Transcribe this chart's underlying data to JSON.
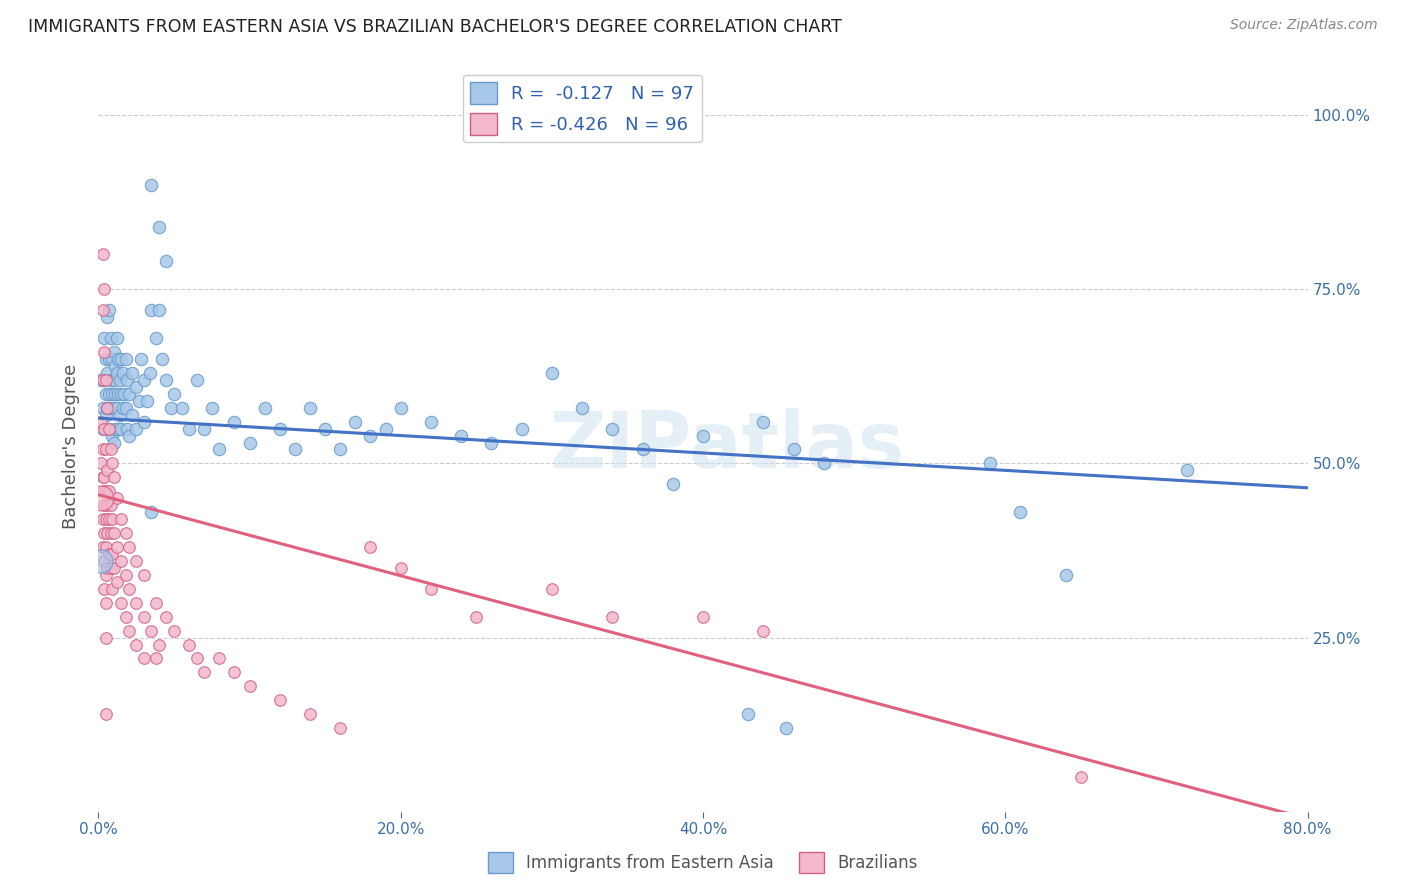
{
  "title": "IMMIGRANTS FROM EASTERN ASIA VS BRAZILIAN BACHELOR'S DEGREE CORRELATION CHART",
  "source": "Source: ZipAtlas.com",
  "ylabel": "Bachelor's Degree",
  "xlim": [
    0.0,
    0.8
  ],
  "ylim": [
    0.0,
    1.05
  ],
  "xtick_labels": [
    "0.0%",
    "20.0%",
    "40.0%",
    "60.0%",
    "80.0%"
  ],
  "xtick_vals": [
    0.0,
    0.2,
    0.4,
    0.6,
    0.8
  ],
  "ytick_vals": [
    0.25,
    0.5,
    0.75,
    1.0
  ],
  "right_ytick_labels": [
    "25.0%",
    "50.0%",
    "75.0%",
    "100.0%"
  ],
  "blue_R": "-0.127",
  "blue_N": "97",
  "pink_R": "-0.426",
  "pink_N": "96",
  "blue_color": "#a8c8e8",
  "pink_color": "#f4b8cc",
  "blue_line_color": "#4472c4",
  "pink_line_color": "#e06080",
  "blue_edge_color": "#6699cc",
  "pink_edge_color": "#d06080",
  "watermark": "ZIPatlas",
  "blue_line_y_start": 0.565,
  "blue_line_y_end": 0.465,
  "pink_line_y_start": 0.455,
  "pink_line_y_end": -0.01,
  "blue_dots": [
    [
      0.002,
      0.62
    ],
    [
      0.003,
      0.58
    ],
    [
      0.003,
      0.55
    ],
    [
      0.004,
      0.62
    ],
    [
      0.004,
      0.68
    ],
    [
      0.005,
      0.65
    ],
    [
      0.005,
      0.6
    ],
    [
      0.005,
      0.57
    ],
    [
      0.006,
      0.63
    ],
    [
      0.006,
      0.58
    ],
    [
      0.006,
      0.71
    ],
    [
      0.007,
      0.65
    ],
    [
      0.007,
      0.6
    ],
    [
      0.007,
      0.72
    ],
    [
      0.007,
      0.55
    ],
    [
      0.008,
      0.68
    ],
    [
      0.008,
      0.62
    ],
    [
      0.008,
      0.58
    ],
    [
      0.009,
      0.65
    ],
    [
      0.009,
      0.6
    ],
    [
      0.009,
      0.54
    ],
    [
      0.01,
      0.66
    ],
    [
      0.01,
      0.62
    ],
    [
      0.01,
      0.58
    ],
    [
      0.01,
      0.53
    ],
    [
      0.011,
      0.64
    ],
    [
      0.011,
      0.6
    ],
    [
      0.011,
      0.55
    ],
    [
      0.012,
      0.68
    ],
    [
      0.012,
      0.63
    ],
    [
      0.012,
      0.58
    ],
    [
      0.013,
      0.65
    ],
    [
      0.013,
      0.6
    ],
    [
      0.013,
      0.55
    ],
    [
      0.014,
      0.62
    ],
    [
      0.014,
      0.57
    ],
    [
      0.015,
      0.65
    ],
    [
      0.015,
      0.6
    ],
    [
      0.015,
      0.55
    ],
    [
      0.016,
      0.63
    ],
    [
      0.016,
      0.58
    ],
    [
      0.017,
      0.6
    ],
    [
      0.018,
      0.65
    ],
    [
      0.018,
      0.58
    ],
    [
      0.019,
      0.62
    ],
    [
      0.019,
      0.55
    ],
    [
      0.02,
      0.6
    ],
    [
      0.02,
      0.54
    ],
    [
      0.022,
      0.63
    ],
    [
      0.022,
      0.57
    ],
    [
      0.025,
      0.61
    ],
    [
      0.025,
      0.55
    ],
    [
      0.027,
      0.59
    ],
    [
      0.028,
      0.65
    ],
    [
      0.03,
      0.62
    ],
    [
      0.03,
      0.56
    ],
    [
      0.032,
      0.59
    ],
    [
      0.034,
      0.63
    ],
    [
      0.035,
      0.72
    ],
    [
      0.038,
      0.68
    ],
    [
      0.04,
      0.72
    ],
    [
      0.042,
      0.65
    ],
    [
      0.045,
      0.62
    ],
    [
      0.048,
      0.58
    ],
    [
      0.05,
      0.6
    ],
    [
      0.055,
      0.58
    ],
    [
      0.06,
      0.55
    ],
    [
      0.065,
      0.62
    ],
    [
      0.07,
      0.55
    ],
    [
      0.075,
      0.58
    ],
    [
      0.08,
      0.52
    ],
    [
      0.09,
      0.56
    ],
    [
      0.1,
      0.53
    ],
    [
      0.11,
      0.58
    ],
    [
      0.12,
      0.55
    ],
    [
      0.13,
      0.52
    ],
    [
      0.14,
      0.58
    ],
    [
      0.15,
      0.55
    ],
    [
      0.16,
      0.52
    ],
    [
      0.17,
      0.56
    ],
    [
      0.18,
      0.54
    ],
    [
      0.19,
      0.55
    ],
    [
      0.2,
      0.58
    ],
    [
      0.22,
      0.56
    ],
    [
      0.24,
      0.54
    ],
    [
      0.26,
      0.53
    ],
    [
      0.28,
      0.55
    ],
    [
      0.3,
      0.63
    ],
    [
      0.32,
      0.58
    ],
    [
      0.34,
      0.55
    ],
    [
      0.36,
      0.52
    ],
    [
      0.4,
      0.54
    ],
    [
      0.44,
      0.56
    ],
    [
      0.46,
      0.52
    ],
    [
      0.48,
      0.5
    ],
    [
      0.035,
      0.9
    ],
    [
      0.04,
      0.84
    ],
    [
      0.045,
      0.79
    ],
    [
      0.035,
      0.43
    ],
    [
      0.38,
      0.47
    ],
    [
      0.43,
      0.14
    ],
    [
      0.455,
      0.12
    ],
    [
      0.59,
      0.5
    ],
    [
      0.61,
      0.43
    ],
    [
      0.64,
      0.34
    ],
    [
      0.72,
      0.49
    ]
  ],
  "pink_dots": [
    [
      0.002,
      0.56
    ],
    [
      0.002,
      0.5
    ],
    [
      0.003,
      0.62
    ],
    [
      0.003,
      0.52
    ],
    [
      0.003,
      0.46
    ],
    [
      0.003,
      0.42
    ],
    [
      0.003,
      0.38
    ],
    [
      0.003,
      0.72
    ],
    [
      0.003,
      0.48
    ],
    [
      0.004,
      0.55
    ],
    [
      0.004,
      0.48
    ],
    [
      0.004,
      0.44
    ],
    [
      0.004,
      0.4
    ],
    [
      0.004,
      0.36
    ],
    [
      0.004,
      0.32
    ],
    [
      0.004,
      0.66
    ],
    [
      0.005,
      0.52
    ],
    [
      0.005,
      0.46
    ],
    [
      0.005,
      0.42
    ],
    [
      0.005,
      0.38
    ],
    [
      0.005,
      0.34
    ],
    [
      0.005,
      0.3
    ],
    [
      0.005,
      0.25
    ],
    [
      0.005,
      0.62
    ],
    [
      0.005,
      0.14
    ],
    [
      0.006,
      0.49
    ],
    [
      0.006,
      0.44
    ],
    [
      0.006,
      0.4
    ],
    [
      0.006,
      0.35
    ],
    [
      0.006,
      0.58
    ],
    [
      0.007,
      0.46
    ],
    [
      0.007,
      0.42
    ],
    [
      0.007,
      0.37
    ],
    [
      0.007,
      0.55
    ],
    [
      0.008,
      0.44
    ],
    [
      0.008,
      0.4
    ],
    [
      0.008,
      0.35
    ],
    [
      0.008,
      0.52
    ],
    [
      0.009,
      0.42
    ],
    [
      0.009,
      0.37
    ],
    [
      0.009,
      0.32
    ],
    [
      0.009,
      0.5
    ],
    [
      0.01,
      0.4
    ],
    [
      0.01,
      0.35
    ],
    [
      0.01,
      0.48
    ],
    [
      0.012,
      0.38
    ],
    [
      0.012,
      0.33
    ],
    [
      0.012,
      0.45
    ],
    [
      0.015,
      0.36
    ],
    [
      0.015,
      0.3
    ],
    [
      0.015,
      0.42
    ],
    [
      0.018,
      0.34
    ],
    [
      0.018,
      0.28
    ],
    [
      0.018,
      0.4
    ],
    [
      0.02,
      0.32
    ],
    [
      0.02,
      0.26
    ],
    [
      0.02,
      0.38
    ],
    [
      0.025,
      0.3
    ],
    [
      0.025,
      0.24
    ],
    [
      0.025,
      0.36
    ],
    [
      0.03,
      0.28
    ],
    [
      0.03,
      0.22
    ],
    [
      0.03,
      0.34
    ],
    [
      0.035,
      0.26
    ],
    [
      0.038,
      0.22
    ],
    [
      0.038,
      0.3
    ],
    [
      0.04,
      0.24
    ],
    [
      0.045,
      0.28
    ],
    [
      0.05,
      0.26
    ],
    [
      0.06,
      0.24
    ],
    [
      0.065,
      0.22
    ],
    [
      0.07,
      0.2
    ],
    [
      0.08,
      0.22
    ],
    [
      0.09,
      0.2
    ],
    [
      0.1,
      0.18
    ],
    [
      0.12,
      0.16
    ],
    [
      0.14,
      0.14
    ],
    [
      0.16,
      0.12
    ],
    [
      0.18,
      0.38
    ],
    [
      0.2,
      0.35
    ],
    [
      0.22,
      0.32
    ],
    [
      0.25,
      0.28
    ],
    [
      0.3,
      0.32
    ],
    [
      0.34,
      0.28
    ],
    [
      0.4,
      0.28
    ],
    [
      0.44,
      0.26
    ],
    [
      0.003,
      0.8
    ],
    [
      0.004,
      0.75
    ],
    [
      0.65,
      0.05
    ]
  ],
  "blue_dot_size": 80,
  "pink_dot_size": 70,
  "large_blue_size": 280,
  "large_pink_size": 320
}
